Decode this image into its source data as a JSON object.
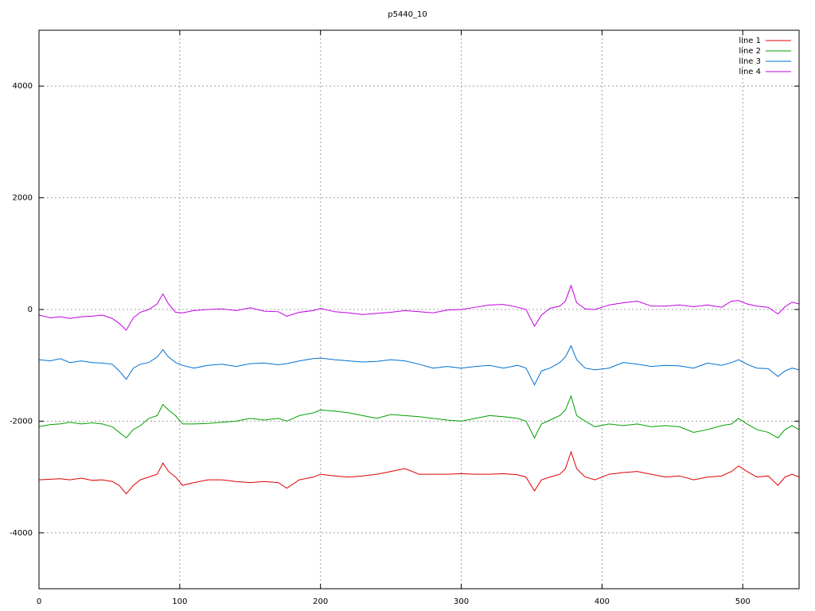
{
  "chart_data": {
    "type": "line",
    "title": "p5440_10",
    "x": [
      0,
      8,
      15,
      22,
      30,
      38,
      45,
      52,
      57,
      62,
      67,
      72,
      78,
      84,
      88,
      92,
      97,
      102,
      110,
      120,
      130,
      140,
      150,
      160,
      170,
      176,
      185,
      195,
      200,
      210,
      220,
      230,
      240,
      250,
      260,
      270,
      280,
      290,
      300,
      310,
      320,
      330,
      340,
      346,
      352,
      357,
      363,
      370,
      374,
      378,
      382,
      388,
      395,
      405,
      415,
      425,
      435,
      445,
      455,
      465,
      475,
      485,
      492,
      497,
      503,
      510,
      518,
      525,
      530,
      535,
      540
    ],
    "series": [
      {
        "name": "line 1",
        "color": "#e00000",
        "values": [
          -3050,
          -3040,
          -3030,
          -3050,
          -3020,
          -3060,
          -3050,
          -3080,
          -3150,
          -3300,
          -3150,
          -3050,
          -3000,
          -2950,
          -2750,
          -2900,
          -3000,
          -3150,
          -3100,
          -3050,
          -3050,
          -3080,
          -3100,
          -3080,
          -3100,
          -3200,
          -3050,
          -3000,
          -2950,
          -2980,
          -3000,
          -2980,
          -2950,
          -2900,
          -2850,
          -2950,
          -2950,
          -2950,
          -2940,
          -2950,
          -2950,
          -2940,
          -2960,
          -3000,
          -3250,
          -3050,
          -3000,
          -2950,
          -2850,
          -2550,
          -2850,
          -3000,
          -3050,
          -2950,
          -2920,
          -2900,
          -2950,
          -3000,
          -2980,
          -3050,
          -3000,
          -2980,
          -2900,
          -2800,
          -2900,
          -3000,
          -2980,
          -3150,
          -3000,
          -2950,
          -3000
        ]
      },
      {
        "name": "line 2",
        "color": "#00a000",
        "values": [
          -2100,
          -2060,
          -2050,
          -2020,
          -2050,
          -2030,
          -2050,
          -2100,
          -2200,
          -2300,
          -2150,
          -2080,
          -1950,
          -1900,
          -1700,
          -1800,
          -1900,
          -2050,
          -2050,
          -2040,
          -2020,
          -2000,
          -1950,
          -1980,
          -1950,
          -2000,
          -1900,
          -1850,
          -1800,
          -1820,
          -1850,
          -1900,
          -1950,
          -1880,
          -1900,
          -1920,
          -1950,
          -1980,
          -2000,
          -1950,
          -1900,
          -1920,
          -1950,
          -2000,
          -2300,
          -2050,
          -1980,
          -1900,
          -1800,
          -1550,
          -1900,
          -2000,
          -2100,
          -2050,
          -2080,
          -2050,
          -2100,
          -2080,
          -2100,
          -2200,
          -2150,
          -2080,
          -2050,
          -1950,
          -2050,
          -2150,
          -2200,
          -2300,
          -2150,
          -2080,
          -2150
        ]
      },
      {
        "name": "line 3",
        "color": "#0070d0",
        "values": [
          -900,
          -920,
          -880,
          -950,
          -920,
          -950,
          -960,
          -980,
          -1100,
          -1250,
          -1050,
          -980,
          -950,
          -850,
          -720,
          -850,
          -950,
          -1000,
          -1050,
          -1000,
          -980,
          -1020,
          -970,
          -960,
          -990,
          -970,
          -920,
          -880,
          -870,
          -900,
          -920,
          -940,
          -930,
          -900,
          -920,
          -980,
          -1050,
          -1020,
          -1050,
          -1020,
          -1000,
          -1050,
          -1000,
          -1050,
          -1350,
          -1100,
          -1050,
          -950,
          -850,
          -650,
          -900,
          -1050,
          -1080,
          -1050,
          -950,
          -980,
          -1020,
          -1000,
          -1010,
          -1050,
          -960,
          -1000,
          -950,
          -900,
          -980,
          -1050,
          -1060,
          -1200,
          -1100,
          -1050,
          -1080
        ]
      },
      {
        "name": "line 4",
        "color": "#c000e0",
        "values": [
          -100,
          -150,
          -130,
          -160,
          -130,
          -120,
          -100,
          -160,
          -250,
          -370,
          -150,
          -50,
          0,
          100,
          280,
          100,
          -50,
          -60,
          -20,
          0,
          10,
          -20,
          30,
          -30,
          -40,
          -120,
          -50,
          -20,
          20,
          -40,
          -60,
          -90,
          -70,
          -50,
          -20,
          -40,
          -60,
          -10,
          0,
          40,
          80,
          90,
          40,
          0,
          -300,
          -100,
          20,
          60,
          150,
          430,
          120,
          10,
          0,
          80,
          120,
          150,
          60,
          60,
          80,
          50,
          80,
          40,
          150,
          160,
          100,
          60,
          40,
          -80,
          50,
          130,
          100
        ]
      }
    ],
    "xlim": [
      0,
      540
    ],
    "xticks": [
      0,
      100,
      200,
      300,
      400,
      500
    ],
    "ylim": [
      -5000,
      5000
    ],
    "yticks": [
      -4000,
      -2000,
      0,
      2000,
      4000
    ],
    "grid": true,
    "legend": "top-right"
  }
}
